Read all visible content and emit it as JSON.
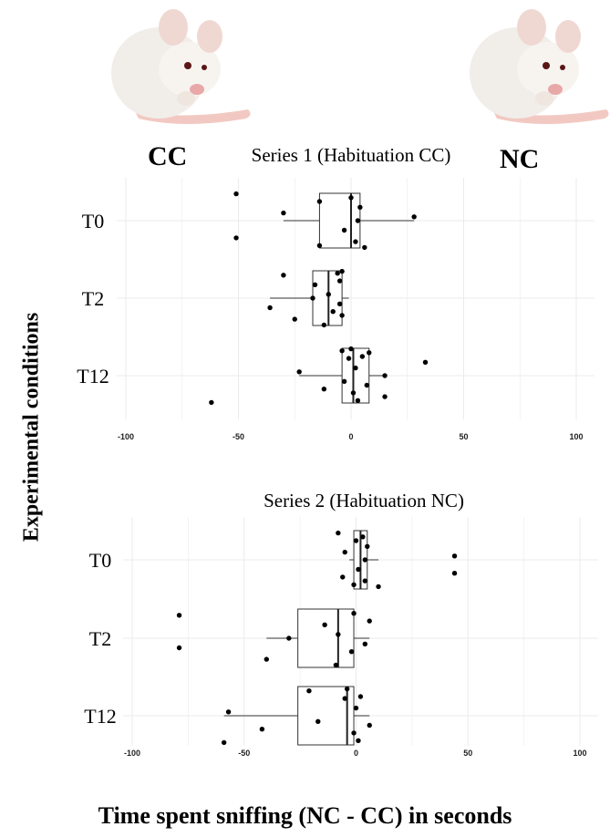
{
  "labels": {
    "cc": "CC",
    "nc": "NC",
    "y_axis": "Experimental conditions",
    "x_axis": "Time spent sniffing (NC - CC) in seconds"
  },
  "icons": [
    "white-mouse-icon",
    "white-mouse-icon"
  ],
  "chart_data": [
    {
      "type": "boxplot",
      "title": "Series 1 (Habituation CC)",
      "xlabel": "Time spent sniffing (NC - CC) in seconds",
      "ylabel": "Experimental conditions",
      "xlim": [
        -100,
        100
      ],
      "xticks": [
        -100,
        -50,
        0,
        50,
        100
      ],
      "grid": true,
      "categories": [
        "T0",
        "T2",
        "T12"
      ],
      "boxes": [
        {
          "name": "T0",
          "whisker_low": -30,
          "q1": -14,
          "median": 0,
          "q3": 4,
          "whisker_high": 28
        },
        {
          "name": "T2",
          "whisker_low": -36,
          "q1": -17,
          "median": -10,
          "q3": -4,
          "whisker_high": -1
        },
        {
          "name": "T12",
          "whisker_low": -23,
          "q1": -4,
          "median": 1,
          "q3": 8,
          "whisker_high": 15
        }
      ],
      "points": [
        {
          "category": "T0",
          "values": [
            -51,
            -51,
            -30,
            -14,
            -14,
            -3,
            0,
            2,
            3,
            4,
            6,
            28
          ]
        },
        {
          "category": "T2",
          "values": [
            -36,
            -30,
            -25,
            -17,
            -16,
            -12,
            -10,
            -8,
            -6,
            -5,
            -5,
            -4,
            -4
          ]
        },
        {
          "category": "T12",
          "values": [
            -62,
            -23,
            -12,
            -4,
            -3,
            -1,
            0,
            1,
            2,
            3,
            5,
            7,
            8,
            15,
            15,
            33
          ]
        }
      ]
    },
    {
      "type": "boxplot",
      "title": "Series 2 (Habituation NC)",
      "xlabel": "Time spent sniffing (NC - CC) in seconds",
      "ylabel": "Experimental conditions",
      "xlim": [
        -100,
        100
      ],
      "xticks": [
        -100,
        -50,
        0,
        50,
        100
      ],
      "grid": true,
      "categories": [
        "T0",
        "T2",
        "T12"
      ],
      "boxes": [
        {
          "name": "T0",
          "whisker_low": -3,
          "q1": -1,
          "median": 2,
          "q3": 5,
          "whisker_high": 10
        },
        {
          "name": "T2",
          "whisker_low": -40,
          "q1": -26,
          "median": -8,
          "q3": -1,
          "whisker_high": 6
        },
        {
          "name": "T12",
          "whisker_low": -59,
          "q1": -26,
          "median": -4,
          "q3": -1,
          "whisker_high": 6
        }
      ],
      "points": [
        {
          "category": "T0",
          "values": [
            -8,
            -6,
            -5,
            -1,
            0,
            1,
            3,
            4,
            4,
            5,
            10,
            44,
            44
          ]
        },
        {
          "category": "T2",
          "values": [
            -79,
            -79,
            -40,
            -30,
            -14,
            -9,
            -8,
            -2,
            -1,
            4,
            6
          ]
        },
        {
          "category": "T12",
          "values": [
            -59,
            -57,
            -42,
            -21,
            -17,
            -5,
            -4,
            -1,
            0,
            1,
            2,
            6
          ]
        }
      ]
    }
  ]
}
